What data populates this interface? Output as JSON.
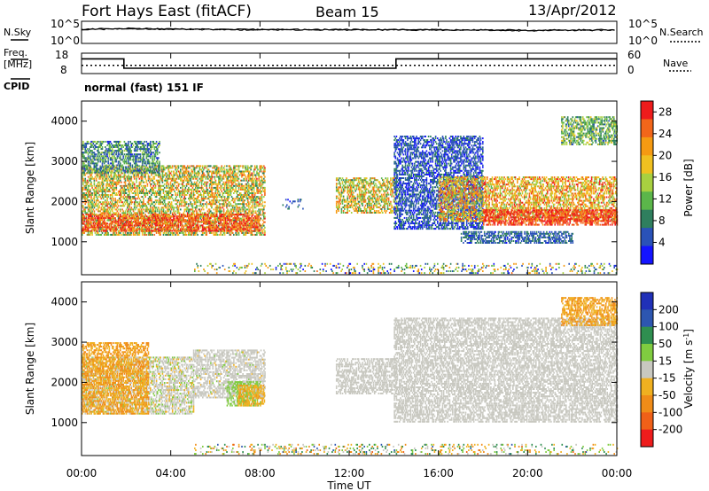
{
  "header": {
    "station": "Fort Hays East (fitACF)",
    "beam": "Beam 15",
    "date": "13/Apr/2012",
    "mode": "normal (fast) 151 IF"
  },
  "side_labels": {
    "nsky": "N.Sky",
    "nsearch": "N.Search",
    "freq_top": "Freq.",
    "freq_unit": "[MHz]",
    "nave": "Nave",
    "cpid": "CPID"
  },
  "noise_axis": {
    "left_ticks": [
      "10^5",
      "10^0"
    ],
    "right_ticks": [
      "10^5",
      "10^0"
    ]
  },
  "freq_axis": {
    "left_ticks": [
      "18",
      "8"
    ],
    "right_ticks": [
      "60",
      "0"
    ]
  },
  "time_axis": {
    "label": "Time UT",
    "ticks": [
      "00:00",
      "04:00",
      "08:00",
      "12:00",
      "16:00",
      "20:00",
      "00:00"
    ]
  },
  "colors": {
    "power_scale": [
      "#1414ff",
      "#2a52b8",
      "#2f7f5e",
      "#5bb64a",
      "#a8d040",
      "#f0c020",
      "#f59a12",
      "#f2661a",
      "#ee1c1c"
    ],
    "velocity_scale": [
      "#2030b8",
      "#2d56b0",
      "#2f8f50",
      "#80cc40",
      "#c8c8c0",
      "#f0b020",
      "#f08c18",
      "#f06018",
      "#ee1c1c"
    ]
  },
  "chart_data": [
    {
      "type": "line",
      "title": "",
      "xlabel": "",
      "ylabel": "",
      "series": [
        {
          "name": "N.Sky",
          "x": [
            0,
            1,
            2,
            4,
            6,
            8,
            10,
            12,
            14,
            16,
            18,
            20,
            22,
            24
          ],
          "values": [
            1500,
            2000,
            2500,
            1800,
            1600,
            1500,
            1400,
            1400,
            1300,
            1200,
            1100,
            1000,
            1100,
            1200
          ]
        },
        {
          "name": "N.Search",
          "x": [
            0,
            1,
            2,
            4,
            6,
            8,
            10,
            12,
            14,
            16,
            18,
            20,
            22,
            24
          ],
          "values": [
            1200,
            1600,
            2000,
            1500,
            1300,
            1200,
            1200,
            1100,
            1100,
            1000,
            900,
            800,
            900,
            1000
          ]
        }
      ],
      "xlim": [
        0,
        24
      ]
    },
    {
      "type": "line",
      "title": "",
      "xlabel": "",
      "ylabel": "Freq. [MHz]",
      "series": [
        {
          "name": "Freq.",
          "x": [
            0,
            1.9,
            1.9,
            14.1,
            14.1,
            24
          ],
          "values": [
            15.2,
            15.2,
            10.6,
            10.6,
            15.2,
            15.2
          ]
        },
        {
          "name": "Nave",
          "x": [
            0,
            24
          ],
          "values": [
            12,
            12
          ]
        }
      ],
      "ylim": [
        8,
        18
      ],
      "xlim": [
        0,
        24
      ]
    },
    {
      "type": "heatmap",
      "title": "",
      "xlabel": "",
      "ylabel": "Slant Range [km]",
      "colorbar_label": "Power [dB]",
      "colorbar_ticks": [
        4,
        8,
        12,
        16,
        20,
        24,
        28
      ],
      "colorbar_range": [
        0,
        30
      ],
      "yticks": [
        1000,
        2000,
        3000,
        4000
      ],
      "ylim": [
        180,
        4500
      ],
      "xlim": [
        0,
        24
      ],
      "regions": [
        {
          "t0": 0.0,
          "t1": 8.2,
          "r0": 1150,
          "r1": 2900,
          "v": 17,
          "spread": 10
        },
        {
          "t0": 0.0,
          "t1": 8.0,
          "r0": 1250,
          "r1": 1700,
          "v": 26,
          "spread": 5
        },
        {
          "t0": 0.0,
          "t1": 3.5,
          "r0": 2700,
          "r1": 3500,
          "v": 9,
          "spread": 6
        },
        {
          "t0": 9.0,
          "t1": 10.0,
          "r0": 1800,
          "r1": 2050,
          "v": 5,
          "spread": 3
        },
        {
          "t0": 11.4,
          "t1": 14.1,
          "r0": 1700,
          "r1": 2600,
          "v": 17,
          "spread": 9
        },
        {
          "t0": 14.0,
          "t1": 18.0,
          "r0": 1300,
          "r1": 3600,
          "v": 5,
          "spread": 4
        },
        {
          "t0": 16.0,
          "t1": 24.0,
          "r0": 1500,
          "r1": 2600,
          "v": 20,
          "spread": 8
        },
        {
          "t0": 18.0,
          "t1": 24.0,
          "r0": 1400,
          "r1": 1800,
          "v": 27,
          "spread": 4
        },
        {
          "t0": 17.0,
          "t1": 22.0,
          "r0": 950,
          "r1": 1250,
          "v": 6,
          "spread": 3
        },
        {
          "t0": 21.5,
          "t1": 24.0,
          "r0": 3400,
          "r1": 4100,
          "v": 12,
          "spread": 6
        },
        {
          "t0": 5.0,
          "t1": 24.0,
          "r0": 200,
          "r1": 450,
          "v": 12,
          "spread": 12
        }
      ]
    },
    {
      "type": "heatmap",
      "title": "",
      "xlabel": "Time UT",
      "ylabel": "Slant Range [km]",
      "colorbar_label": "Velocity [m s^-1]",
      "colorbar_ticks": [
        200,
        100,
        50,
        15,
        -15,
        -50,
        -100,
        -200
      ],
      "colorbar_range": [
        -250,
        250
      ],
      "yticks": [
        1000,
        2000,
        3000,
        4000
      ],
      "ylim": [
        180,
        4500
      ],
      "xlim": [
        0,
        24
      ],
      "regions": [
        {
          "t0": 0.0,
          "t1": 5.0,
          "r0": 1200,
          "r1": 2600,
          "v": 0,
          "spread": 40
        },
        {
          "t0": 0.0,
          "t1": 3.0,
          "r0": 1200,
          "r1": 3000,
          "v": -80,
          "spread": 40
        },
        {
          "t0": 5.0,
          "t1": 8.2,
          "r0": 1600,
          "r1": 2800,
          "v": 0,
          "spread": 30
        },
        {
          "t0": 6.5,
          "t1": 8.0,
          "r0": 1400,
          "r1": 2000,
          "v": 40,
          "spread": 20
        },
        {
          "t0": 7.0,
          "t1": 8.2,
          "r0": 1400,
          "r1": 1900,
          "v": -70,
          "spread": 20
        },
        {
          "t0": 11.4,
          "t1": 14.1,
          "r0": 1700,
          "r1": 2600,
          "v": 0,
          "spread": 10
        },
        {
          "t0": 14.0,
          "t1": 24.0,
          "r0": 1000,
          "r1": 3600,
          "v": 0,
          "spread": 10
        },
        {
          "t0": 21.5,
          "t1": 24.0,
          "r0": 3400,
          "r1": 4100,
          "v": -80,
          "spread": 30
        },
        {
          "t0": 5.0,
          "t1": 24.0,
          "r0": 200,
          "r1": 450,
          "v": 0,
          "spread": 150
        }
      ]
    }
  ]
}
